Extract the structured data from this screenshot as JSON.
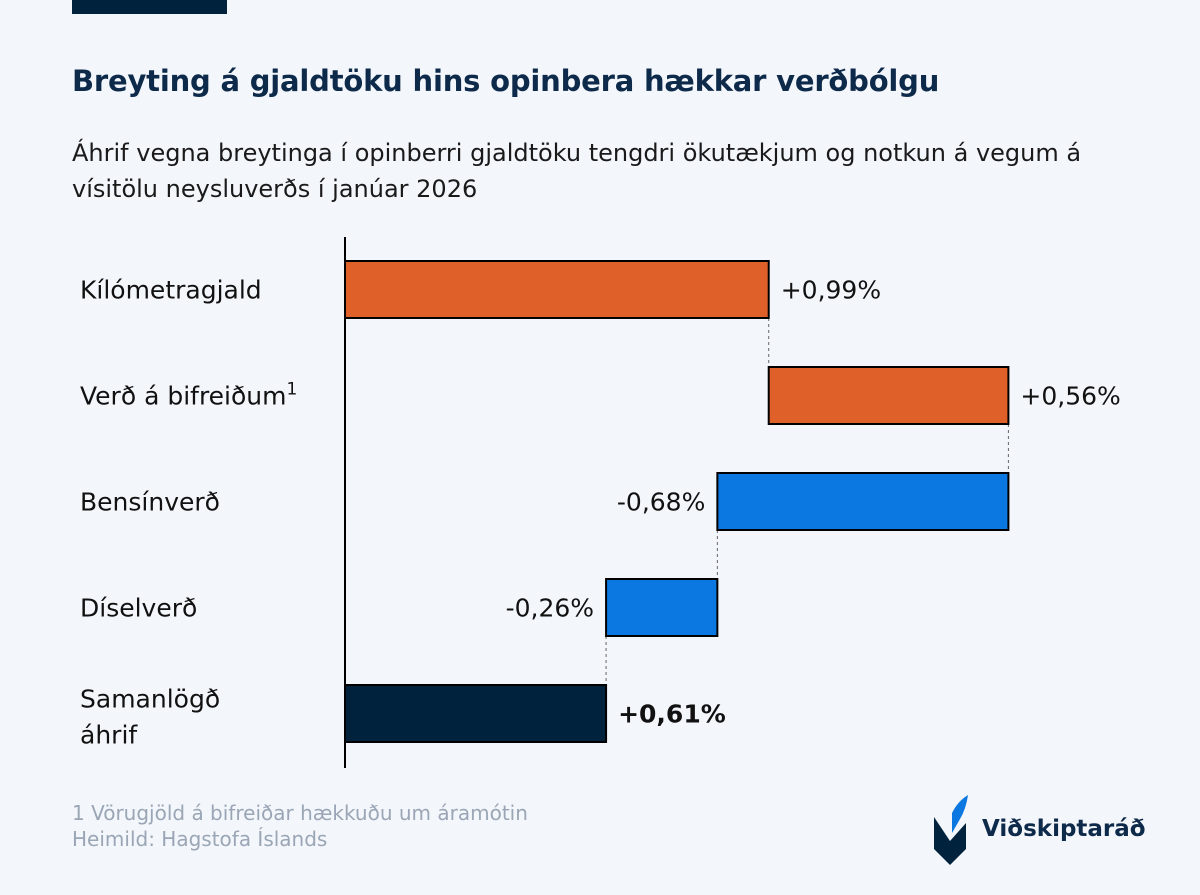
{
  "title": "Breyting á gjaldtöku hins opinbera hækkar verðbólgu",
  "subtitle": "Áhrif vegna breytinga í opinberri gjaldtöku tengdri ökutækjum og notkun á vegum á vísitölu neysluverðs í janúar 2026",
  "chart_data": {
    "type": "waterfall",
    "title": "Breyting á gjaldtöku hins opinbera hækkar verðbólgu",
    "subtitle": "Áhrif vegna breytinga í opinberri gjaldtöku tengdri ökutækjum og notkun á vegum á vísitölu neysluverðs í janúar 2026",
    "categories": [
      [
        "Kílómetragjald"
      ],
      [
        "Verð á bifreiðum",
        "1"
      ],
      [
        "Bensínverð"
      ],
      [
        "Díselverð"
      ],
      [
        "Samanlögð",
        "áhrif"
      ]
    ],
    "values": [
      0.99,
      0.56,
      -0.68,
      -0.26,
      0.61
    ],
    "labels": [
      "+0,99%",
      "+0,56%",
      "-0,68%",
      "-0,26%",
      "+0,61%"
    ],
    "kinds": [
      "increase",
      "increase",
      "decrease",
      "decrease",
      "total"
    ],
    "unit": "%",
    "xlim": [
      0,
      1.55
    ],
    "colors": {
      "increase": "#e0602a",
      "decrease": "#0a78e0",
      "total": "#00223d",
      "axis": "#000000",
      "connector": "#666666"
    }
  },
  "footnotes": {
    "note": "1 Vörugjöld á bifreiðar hækkuðu um áramótin",
    "source": "Heimild: Hagstofa Íslands"
  },
  "logo": {
    "name": "Viðskiptaráð",
    "icon": "vidskiptarad-logo-icon"
  }
}
